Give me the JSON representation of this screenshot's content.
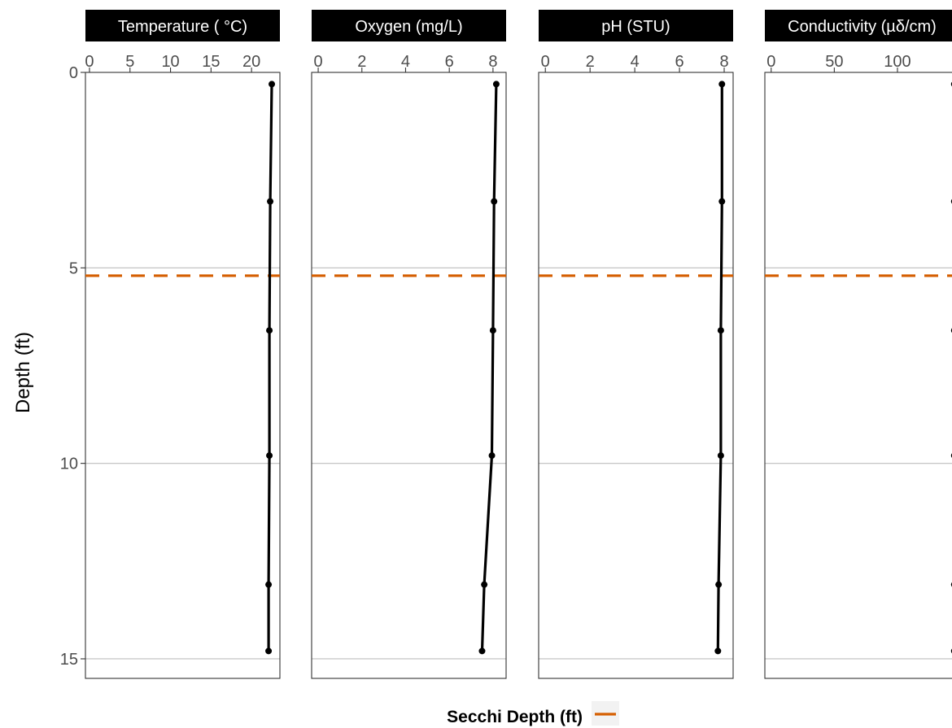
{
  "chart_data": {
    "type": "line",
    "y_axis": {
      "label": "Depth (ft)",
      "ticks": [
        "0",
        "5",
        "10",
        "15"
      ],
      "tick_values": [
        0,
        5,
        10,
        15
      ],
      "ylim": [
        0,
        15.5
      ],
      "reversed": true
    },
    "depths": [
      0.3,
      3.3,
      6.6,
      9.8,
      13.1,
      14.8
    ],
    "secchi_depth": 5.2,
    "secchi_color": "#d55e00",
    "line_color": "#000000",
    "grid": "horizontal major lines",
    "legend": {
      "title": "Secchi Depth (ft)",
      "position": "bottom"
    },
    "panels": [
      {
        "title": "Temperature ( °C)",
        "xlim": [
          -0.5,
          23.5
        ],
        "ticks": [
          "0",
          "5",
          "10",
          "15",
          "20"
        ],
        "tick_values": [
          0,
          5,
          10,
          15,
          20
        ],
        "values": [
          22.5,
          22.3,
          22.2,
          22.2,
          22.1,
          22.1
        ]
      },
      {
        "title": "Oxygen (mg/L)",
        "xlim": [
          -0.3,
          8.6
        ],
        "ticks": [
          "0",
          "2",
          "4",
          "6",
          "8"
        ],
        "tick_values": [
          0,
          2,
          4,
          6,
          8
        ],
        "values": [
          8.15,
          8.05,
          8.0,
          7.95,
          7.6,
          7.5
        ]
      },
      {
        "title": "pH (STU)",
        "xlim": [
          -0.3,
          8.4
        ],
        "ticks": [
          "0",
          "2",
          "4",
          "6",
          "8"
        ],
        "tick_values": [
          0,
          2,
          4,
          6,
          8
        ],
        "values": [
          7.9,
          7.9,
          7.85,
          7.85,
          7.75,
          7.72
        ]
      },
      {
        "title": "Conductivity (µδ/cm)",
        "xlim": [
          -5,
          149
        ],
        "ticks": [
          "0",
          "50",
          "100"
        ],
        "tick_values": [
          0,
          50,
          100
        ],
        "values": [
          145,
          145,
          145,
          145,
          145,
          145
        ]
      }
    ]
  }
}
